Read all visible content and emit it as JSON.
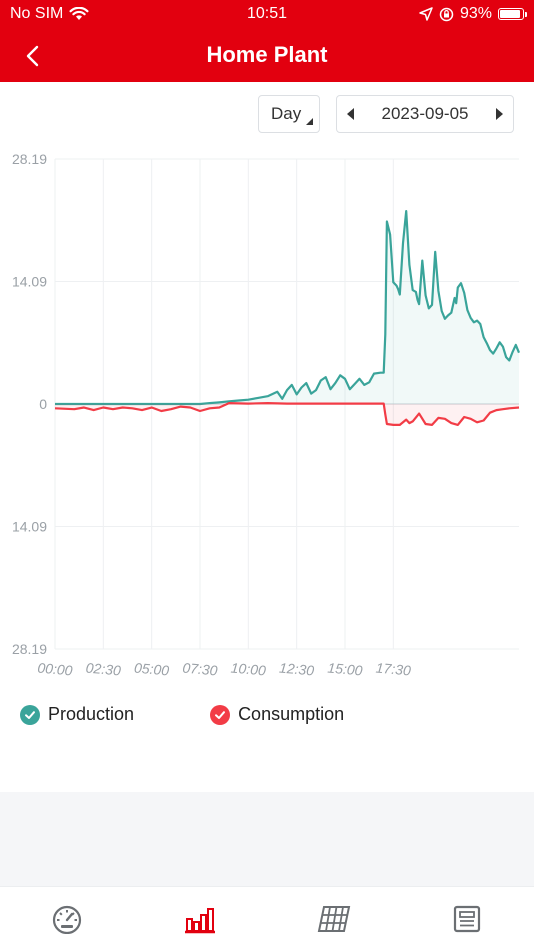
{
  "status_bar": {
    "carrier": "No SIM",
    "time": "10:51",
    "battery": "93%",
    "battery_level": 0.93
  },
  "nav": {
    "title": "Home Plant",
    "back_icon": "chevron-left-icon"
  },
  "controls": {
    "period": "Day",
    "date": "2023-09-05"
  },
  "chart_data": {
    "type": "area",
    "y_ticks": [
      "28.19",
      "14.09",
      "0",
      "14.09",
      "28.19"
    ],
    "ylim": [
      -28.19,
      28.19
    ],
    "xlim": [
      0,
      1440
    ],
    "x_ticks": [
      "00:00",
      "02:30",
      "05:00",
      "07:30",
      "10:00",
      "12:30",
      "15:00",
      "17:30"
    ],
    "grid": true,
    "legend_position": "bottom-left",
    "series": [
      {
        "name": "Production",
        "color": "#3aa49a",
        "x": [
          0,
          60,
          120,
          180,
          240,
          300,
          360,
          420,
          450,
          480,
          510,
          540,
          570,
          600,
          630,
          660,
          690,
          705,
          720,
          735,
          750,
          765,
          780,
          795,
          810,
          825,
          840,
          855,
          870,
          885,
          900,
          915,
          930,
          945,
          960,
          975,
          990,
          1010,
          1020,
          1025,
          1030,
          1040,
          1050,
          1060,
          1065,
          1070,
          1080,
          1090,
          1100,
          1110,
          1120,
          1125,
          1130,
          1140,
          1150,
          1160,
          1170,
          1175,
          1180,
          1190,
          1200,
          1210,
          1220,
          1230,
          1240,
          1245,
          1250,
          1260,
          1270,
          1280,
          1290,
          1300,
          1310,
          1320,
          1330,
          1340,
          1350,
          1360,
          1370,
          1380,
          1390,
          1400,
          1410,
          1420,
          1430,
          1440
        ],
        "values": [
          0,
          0,
          0,
          0,
          0,
          0,
          0,
          0,
          0,
          0.1,
          0.2,
          0.3,
          0.4,
          0.5,
          0.7,
          0.9,
          1.4,
          0.6,
          1.6,
          2.2,
          1.1,
          1.9,
          2.4,
          1.2,
          1.6,
          2.7,
          3.1,
          1.7,
          2.4,
          3.3,
          2.9,
          1.7,
          2.3,
          2.9,
          2.2,
          2.5,
          3.5,
          3.6,
          3.6,
          8.0,
          21.0,
          19.5,
          14.0,
          13.6,
          13.2,
          12.6,
          18.5,
          22.2,
          16.0,
          13.1,
          12.9,
          12.0,
          11.5,
          16.5,
          12.5,
          11.0,
          11.4,
          14.5,
          17.5,
          13.0,
          10.7,
          9.8,
          10.2,
          10.5,
          12.2,
          11.6,
          13.4,
          13.9,
          12.8,
          10.8,
          9.9,
          9.4,
          9.6,
          9.2,
          7.7,
          7.0,
          6.2,
          5.8,
          6.4,
          7.1,
          6.6,
          5.4,
          5.0,
          6.0,
          6.8,
          5.9
        ]
      },
      {
        "name": "Consumption",
        "color": "#f23c46",
        "x": [
          0,
          60,
          90,
          120,
          150,
          180,
          210,
          240,
          270,
          300,
          330,
          360,
          390,
          420,
          450,
          480,
          510,
          540,
          600,
          660,
          720,
          780,
          840,
          900,
          960,
          1000,
          1020,
          1025,
          1030,
          1050,
          1070,
          1090,
          1100,
          1110,
          1130,
          1150,
          1170,
          1190,
          1210,
          1230,
          1250,
          1270,
          1290,
          1310,
          1330,
          1350,
          1370,
          1390,
          1410,
          1440
        ],
        "values": [
          -0.5,
          -0.6,
          -0.4,
          -0.7,
          -0.4,
          -0.6,
          -0.4,
          -0.5,
          -0.7,
          -0.4,
          -0.8,
          -0.6,
          -0.3,
          -0.4,
          -0.8,
          -0.5,
          -0.4,
          0.1,
          0.05,
          0.1,
          0.05,
          0.05,
          0.05,
          0.05,
          0.05,
          0.05,
          0.05,
          -1.2,
          -2.3,
          -2.4,
          -2.4,
          -1.8,
          -2.2,
          -2.0,
          -1.1,
          -2.3,
          -2.4,
          -1.6,
          -1.7,
          -2.2,
          -2.4,
          -1.5,
          -1.7,
          -2.1,
          -1.9,
          -1.0,
          -0.7,
          -0.6,
          -0.5,
          -0.4
        ]
      }
    ]
  },
  "legend": {
    "production_label": "Production",
    "consumption_label": "Consumption"
  },
  "tabbar": {
    "tabs": [
      {
        "name": "dashboard",
        "icon": "speedometer-icon",
        "active": false
      },
      {
        "name": "statistics",
        "icon": "bar-chart-icon",
        "active": true
      },
      {
        "name": "plant",
        "icon": "solar-panel-icon",
        "active": false
      },
      {
        "name": "report",
        "icon": "document-icon",
        "active": false
      }
    ]
  }
}
